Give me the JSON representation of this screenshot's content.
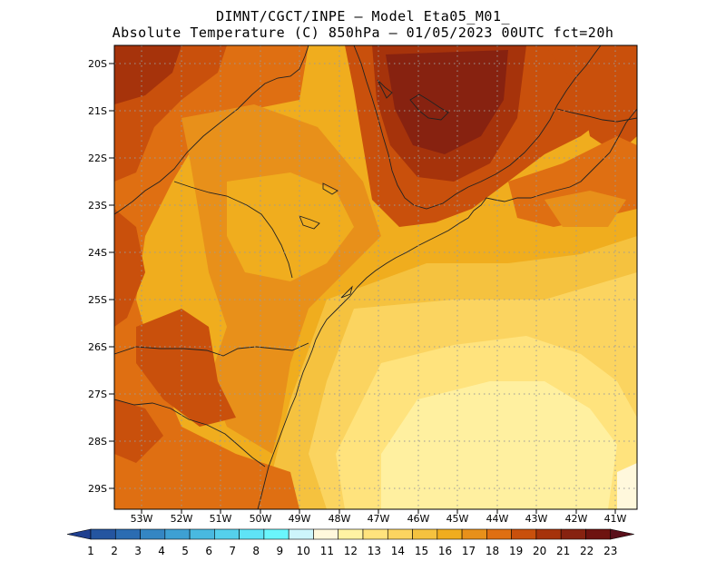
{
  "header": {
    "line1": "DIMNT/CGCT/INPE —  Model Eta05_M01_",
    "line2": "Absolute Temperature (C) 850hPa —  01/05/2023 00UTC fct=20h"
  },
  "map": {
    "lat_labels": [
      "20S",
      "21S",
      "22S",
      "23S",
      "24S",
      "25S",
      "26S",
      "27S",
      "28S",
      "29S"
    ],
    "lon_labels": [
      "53W",
      "52W",
      "51W",
      "50W",
      "49W",
      "48W",
      "47W",
      "46W",
      "45W",
      "44W",
      "43W",
      "42W",
      "41W"
    ]
  },
  "colorbar": {
    "labels": [
      "1",
      "2",
      "3",
      "4",
      "5",
      "6",
      "7",
      "8",
      "9",
      "10",
      "11",
      "12",
      "13",
      "14",
      "15",
      "16",
      "17",
      "18",
      "19",
      "20",
      "21",
      "22",
      "23"
    ],
    "colors": [
      "#1f3f8f",
      "#2455a0",
      "#2b6cb2",
      "#3486c3",
      "#3ea0d3",
      "#49b9e0",
      "#55d0ec",
      "#5fe3f6",
      "#6af5fc",
      "#cdf5fb",
      "#fff8dc",
      "#fff3a3",
      "#ffe37d",
      "#fbd460",
      "#f5c23f",
      "#f0ad1e",
      "#e8901a",
      "#df6f12",
      "#c9500c",
      "#a6330b",
      "#872210",
      "#6e1310",
      "#5a0f1a"
    ]
  }
}
